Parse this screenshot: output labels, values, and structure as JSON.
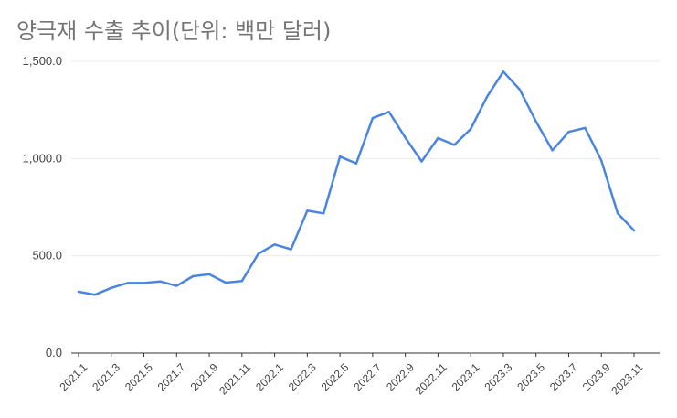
{
  "chart_data": {
    "type": "line",
    "title": "양극재 수출 추이(단위: 백만 달러)",
    "xlabel": "",
    "ylabel": "",
    "ylim": [
      0,
      1500
    ],
    "yticks": [
      "0.0",
      "500.0",
      "1,000.0",
      "1,500.0"
    ],
    "grid": true,
    "legend": "none",
    "line_color": "#4a86e0",
    "x": [
      "2021.1",
      "2021.2",
      "2021.3",
      "2021.4",
      "2021.5",
      "2021.6",
      "2021.7",
      "2021.8",
      "2021.9",
      "2021.10",
      "2021.11",
      "2021.12",
      "2022.1",
      "2022.2",
      "2022.3",
      "2022.4",
      "2022.5",
      "2022.6",
      "2022.7",
      "2022.8",
      "2022.9",
      "2022.10",
      "2022.11",
      "2022.12",
      "2023.1",
      "2023.2",
      "2023.3",
      "2023.4",
      "2023.5",
      "2023.6",
      "2023.7",
      "2023.8",
      "2023.9",
      "2023.10",
      "2023.11"
    ],
    "xtick_labels": [
      "2021.1",
      "2021.3",
      "2021.5",
      "2021.7",
      "2021.9",
      "2021.11",
      "2022.1",
      "2022.3",
      "2022.5",
      "2022.7",
      "2022.9",
      "2022.11",
      "2023.1",
      "2023.3",
      "2023.5",
      "2023.7",
      "2023.9",
      "2023.11"
    ],
    "series": [
      {
        "values": [
          315,
          300,
          335,
          360,
          360,
          368,
          345,
          395,
          405,
          362,
          370,
          510,
          558,
          533,
          732,
          718,
          1010,
          975,
          1208,
          1240,
          1108,
          985,
          1105,
          1070,
          1152,
          1318,
          1447,
          1355,
          1190,
          1042,
          1137,
          1157,
          990,
          718,
          630
        ]
      }
    ]
  }
}
